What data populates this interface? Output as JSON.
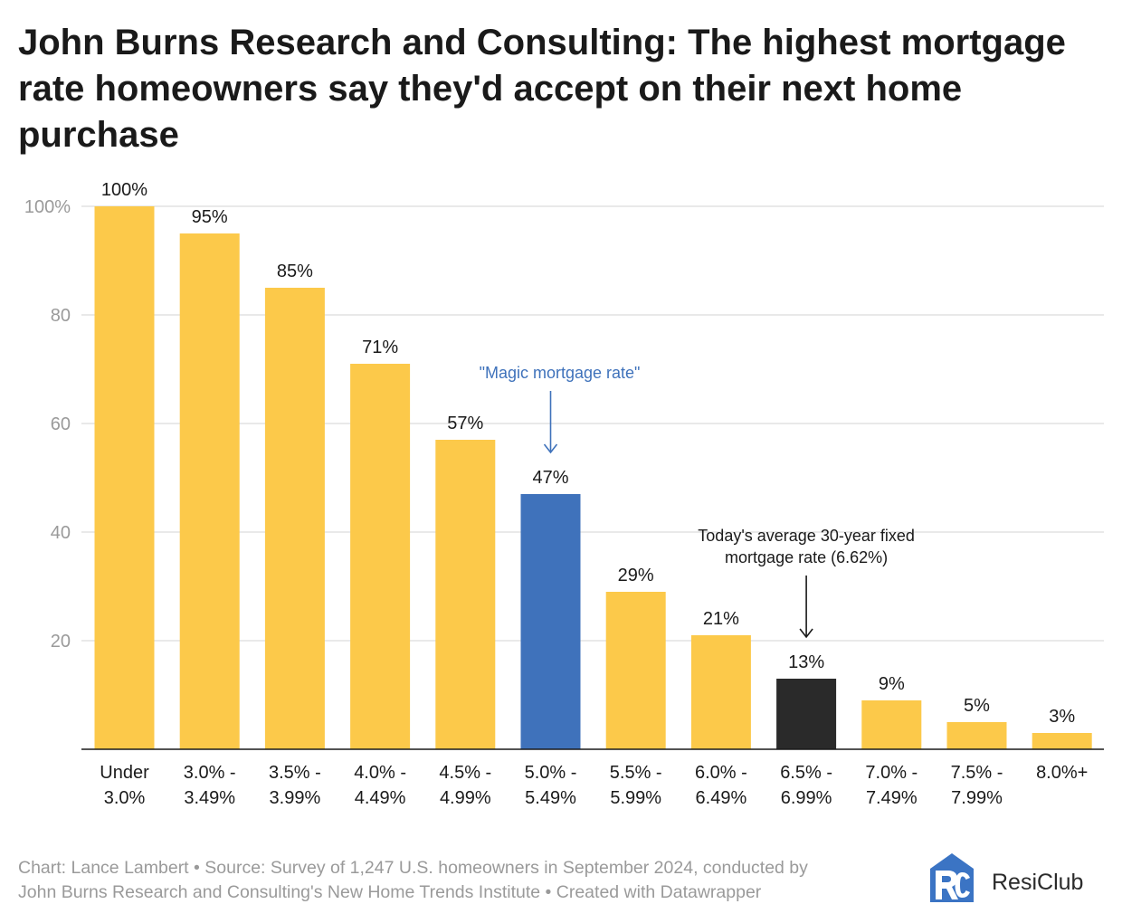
{
  "title": "John Burns Research and Consulting: The highest mortgage rate homeowners say they'd accept on their next home purchase",
  "footer": {
    "line1": "Chart: Lance Lambert • Source: Survey of 1,247 U.S. homeowners in September 2024, conducted by",
    "line2": "John Burns Research and Consulting's New Home Trends Institute • Created with Datawrapper"
  },
  "logo": {
    "text": "ResiClub",
    "mark": "RC",
    "icon": "resiclub-logo-icon",
    "color": "#3b74c4"
  },
  "colors": {
    "default_bar": "#fcc94a",
    "highlight_bar": "#3f72bb",
    "current_rate_bar": "#2a2a2a",
    "magic_annotation": "#3f72bb",
    "current_annotation": "#1a1a1a",
    "axis_label": "#9a9a9a",
    "grid": "#dcdcdc"
  },
  "chart_data": {
    "type": "bar",
    "categories": [
      [
        "Under",
        "3.0%"
      ],
      [
        "3.0% -",
        "3.49%"
      ],
      [
        "3.5% -",
        "3.99%"
      ],
      [
        "4.0% -",
        "4.49%"
      ],
      [
        "4.5% -",
        "4.99%"
      ],
      [
        "5.0% -",
        "5.49%"
      ],
      [
        "5.5% -",
        "5.99%"
      ],
      [
        "6.0% -",
        "6.49%"
      ],
      [
        "6.5% -",
        "6.99%"
      ],
      [
        "7.0% -",
        "7.49%"
      ],
      [
        "7.5% -",
        "7.99%"
      ],
      [
        "8.0%+"
      ]
    ],
    "values": [
      100,
      95,
      85,
      71,
      57,
      47,
      29,
      21,
      13,
      9,
      5,
      3
    ],
    "value_labels": [
      "100%",
      "95%",
      "85%",
      "71%",
      "57%",
      "47%",
      "29%",
      "21%",
      "13%",
      "9%",
      "5%",
      "3%"
    ],
    "bar_colors": [
      "default",
      "default",
      "default",
      "default",
      "default",
      "highlight",
      "default",
      "default",
      "current",
      "default",
      "default",
      "default"
    ],
    "ylim": [
      0,
      100
    ],
    "yticks": [
      20,
      40,
      60,
      80,
      100
    ],
    "ytick_labels": [
      "20",
      "40",
      "60",
      "80",
      "100%"
    ],
    "grid": true,
    "annotations": [
      {
        "text_lines": [
          "\"Magic mortgage rate\""
        ],
        "category_index": 5,
        "style": "magic"
      },
      {
        "text_lines": [
          "Today's average 30-year fixed",
          "mortgage rate (6.62%)"
        ],
        "category_index": 8,
        "style": "current"
      }
    ]
  }
}
